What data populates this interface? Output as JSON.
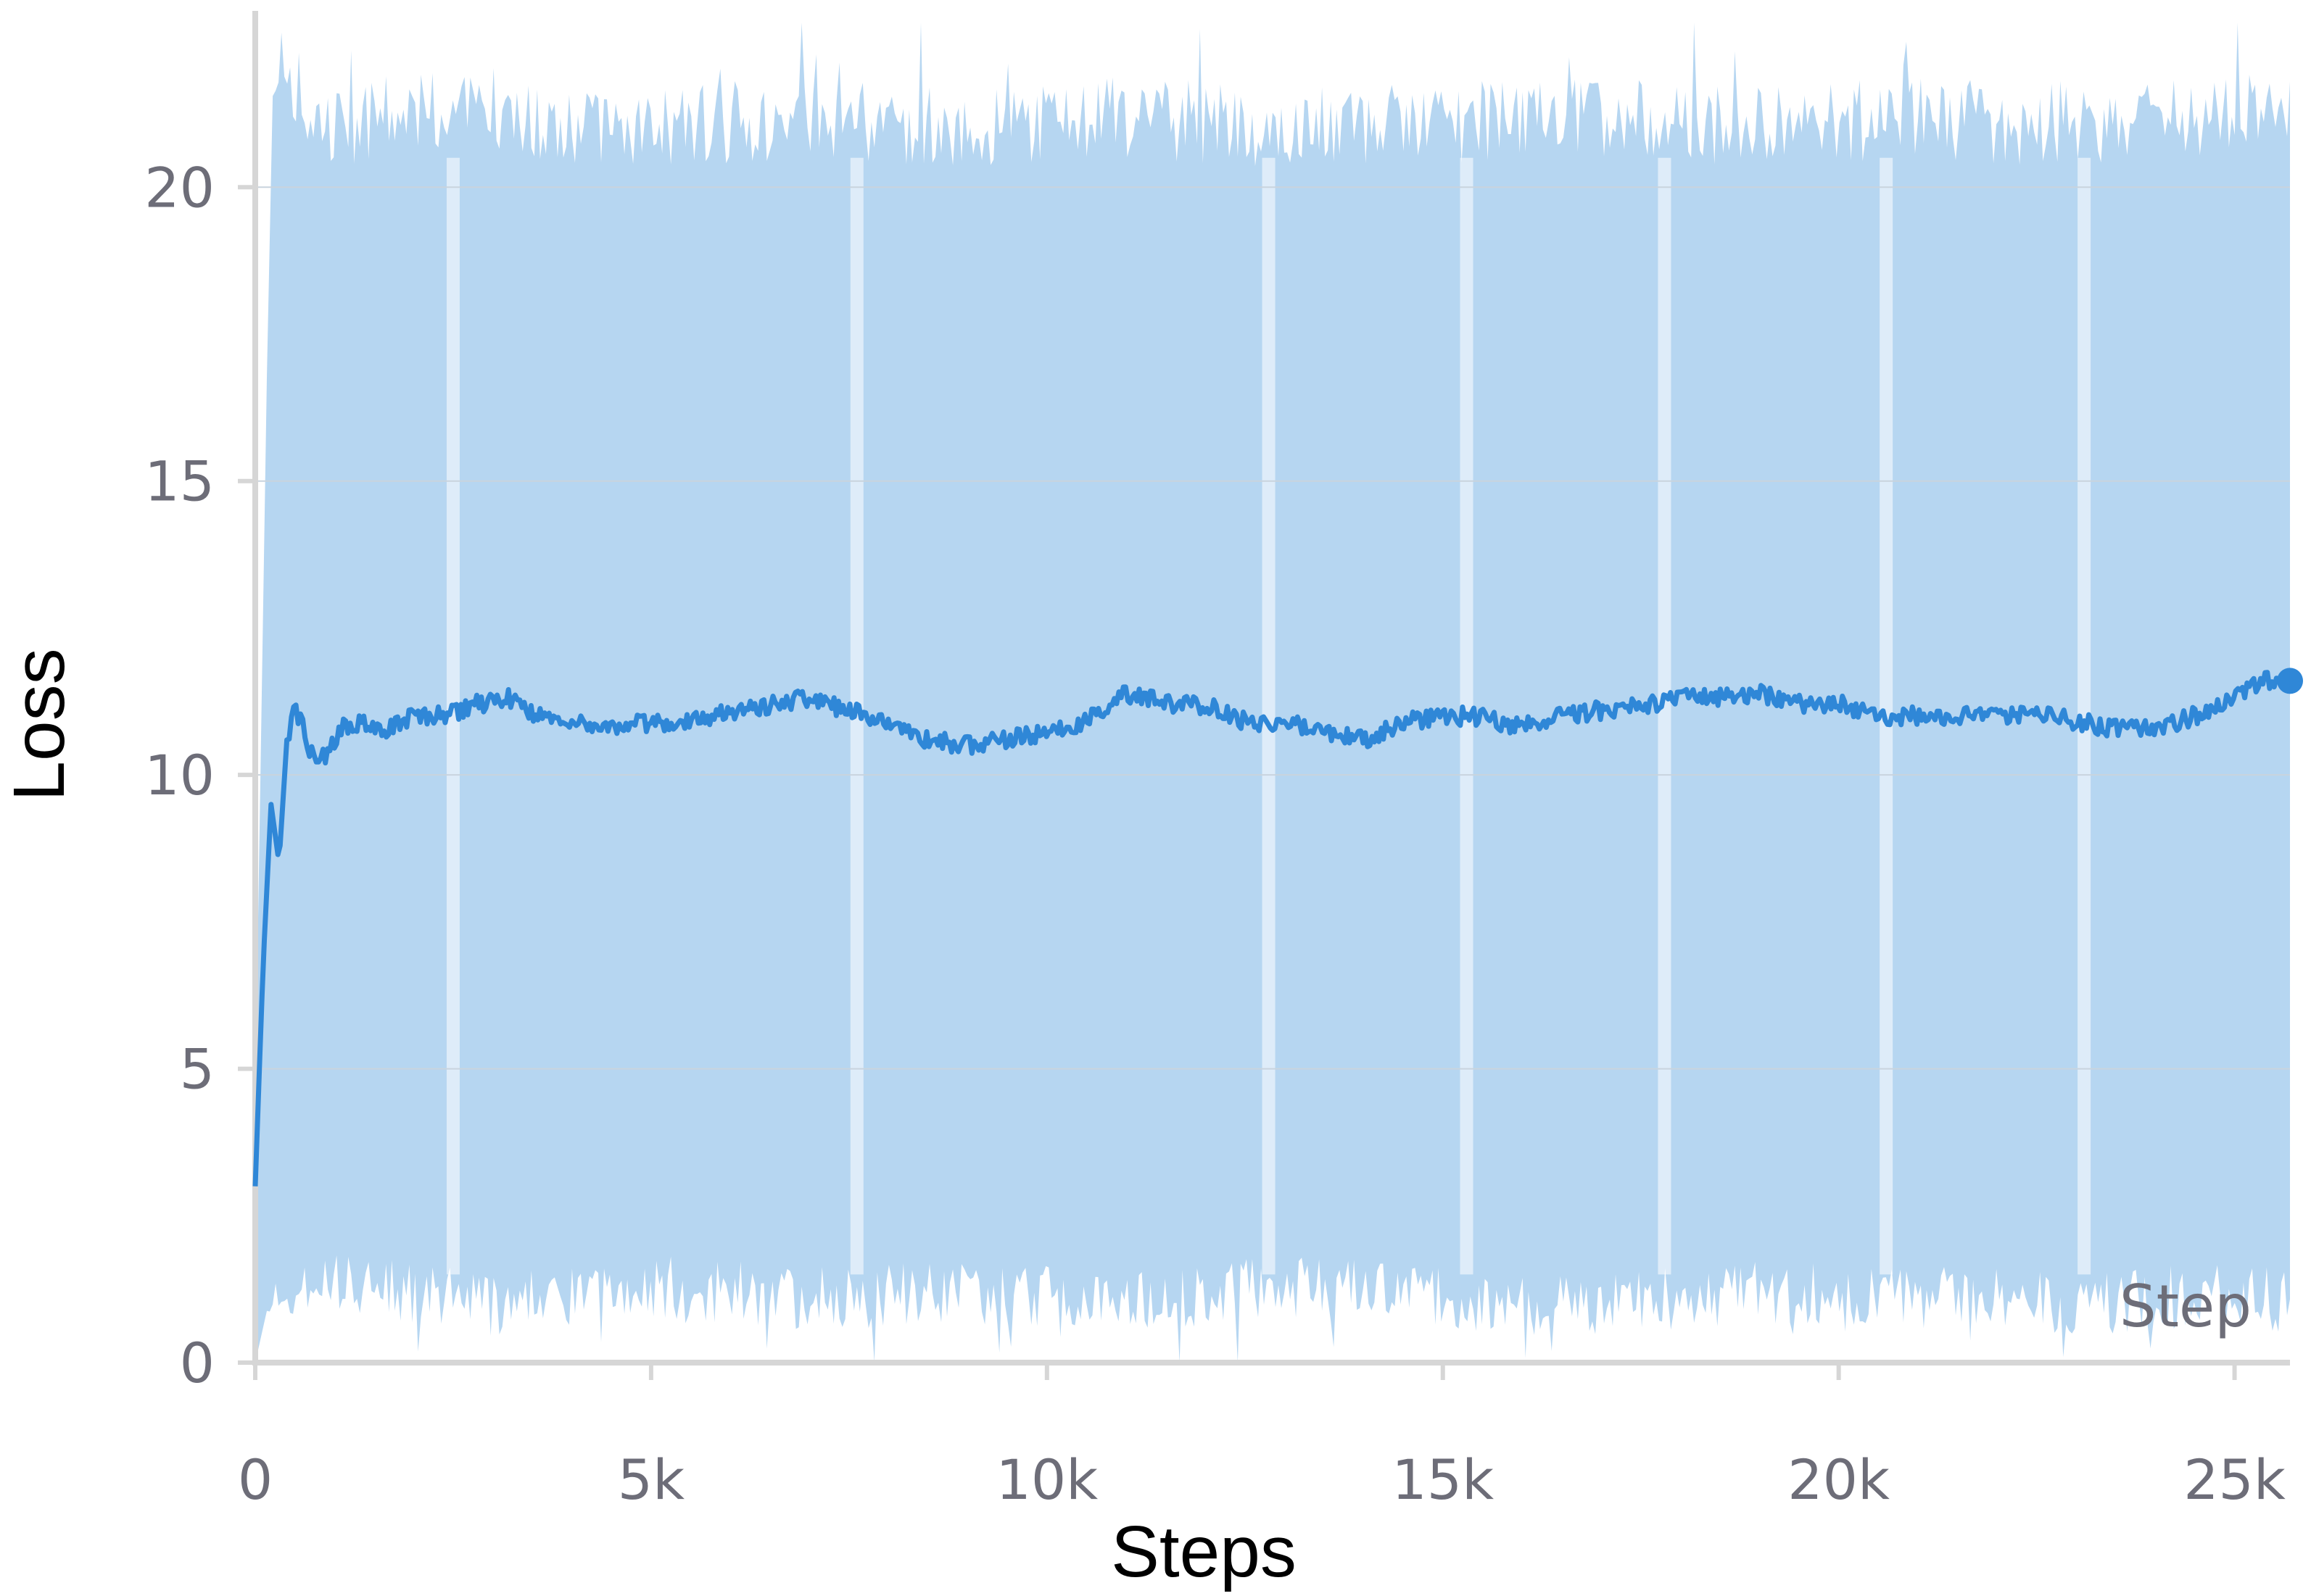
{
  "colors": {
    "band": "#b6d6f1",
    "line": "#2f87d7",
    "grid": "#c9d4de",
    "axis": "#d6d6d6",
    "tick_text": "#6d6d78"
  },
  "chart_data": {
    "type": "line",
    "xlabel": "Steps",
    "ylabel": "Loss",
    "corner_label": "Step",
    "xlim": [
      0,
      25700
    ],
    "ylim": [
      0,
      23
    ],
    "x_ticks": [
      0,
      5000,
      10000,
      15000,
      20000,
      25000
    ],
    "x_tick_labels": [
      "0",
      "5k",
      "10k",
      "15k",
      "20k",
      "25k"
    ],
    "y_ticks": [
      0,
      5,
      10,
      15,
      20
    ],
    "y_tick_labels": [
      "0",
      "5",
      "10",
      "15",
      "20"
    ],
    "grid": true,
    "legend": "none",
    "series": [
      {
        "style": "smoothed line",
        "x": [
          0,
          100,
          200,
          300,
          400,
          500,
          700,
          900,
          1100,
          1300,
          1600,
          2000,
          2400,
          2800,
          3200,
          3600,
          4000,
          4500,
          5000,
          5500,
          6000,
          6500,
          7000,
          7500,
          8000,
          8500,
          9000,
          9500,
          10000,
          10500,
          11000,
          11500,
          12000,
          12500,
          13000,
          13500,
          14000,
          14500,
          15000,
          15500,
          16000,
          16500,
          17000,
          17500,
          18000,
          18500,
          19000,
          19500,
          20000,
          20500,
          21000,
          21500,
          22000,
          22500,
          23000,
          23500,
          24000,
          24500,
          25000,
          25400,
          25700
        ],
        "y": [
          3.0,
          6.8,
          9.5,
          8.5,
          10.6,
          11.2,
          10.4,
          10.3,
          10.8,
          10.9,
          10.7,
          11.0,
          11.0,
          11.2,
          11.3,
          11.0,
          10.9,
          10.8,
          10.9,
          10.9,
          11.1,
          11.2,
          11.3,
          11.1,
          10.9,
          10.6,
          10.5,
          10.6,
          10.7,
          10.9,
          11.4,
          11.2,
          11.2,
          10.9,
          10.9,
          10.7,
          10.6,
          10.9,
          11.0,
          11.0,
          10.8,
          11.0,
          11.1,
          11.2,
          11.3,
          11.3,
          11.4,
          11.2,
          11.2,
          11.0,
          11.0,
          11.0,
          11.0,
          11.1,
          10.9,
          10.8,
          10.8,
          11.0,
          11.3,
          11.6,
          11.6
        ]
      },
      {
        "style": "raw value band",
        "x": [
          0,
          200,
          400,
          1000,
          2000,
          3000,
          5000,
          7000,
          9000,
          11000,
          13000,
          15000,
          17000,
          19000,
          21000,
          23000,
          25000,
          25700
        ],
        "y_high": [
          4.5,
          21.2,
          21.5,
          21.0,
          21.3,
          21.2,
          21.0,
          21.2,
          21.0,
          21.2,
          21.0,
          21.1,
          21.2,
          21.0,
          21.2,
          21.0,
          21.3,
          21.0
        ],
        "y_low": [
          0.0,
          1.2,
          1.0,
          1.4,
          1.2,
          1.0,
          1.3,
          1.1,
          1.2,
          1.0,
          1.3,
          1.1,
          1.0,
          1.2,
          1.1,
          1.0,
          1.2,
          1.0
        ]
      }
    ]
  }
}
